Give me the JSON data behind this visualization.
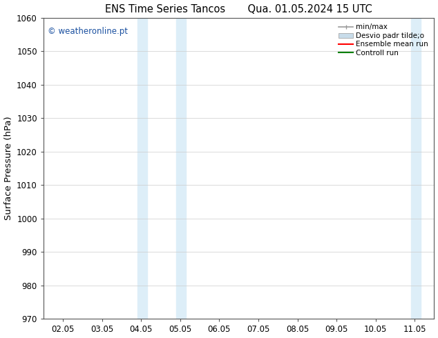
{
  "title": "ENS Time Series Tancos       Qua. 01.05.2024 15 UTC",
  "ylabel": "Surface Pressure (hPa)",
  "xlabel": "",
  "ylim": [
    970,
    1060
  ],
  "yticks": [
    970,
    980,
    990,
    1000,
    1010,
    1020,
    1030,
    1040,
    1050,
    1060
  ],
  "xtick_labels": [
    "02.05",
    "03.05",
    "04.05",
    "05.05",
    "06.05",
    "07.05",
    "08.05",
    "09.05",
    "10.05",
    "11.05"
  ],
  "xtick_positions": [
    0,
    1,
    2,
    3,
    4,
    5,
    6,
    7,
    8,
    9
  ],
  "xlim": [
    -0.5,
    9.5
  ],
  "shaded_regions": [
    {
      "xmin": 1.9,
      "xmax": 2.15,
      "color": "#ddeef8"
    },
    {
      "xmin": 2.9,
      "xmax": 3.15,
      "color": "#ddeef8"
    },
    {
      "xmin": 8.9,
      "xmax": 9.15,
      "color": "#ddeef8"
    },
    {
      "xmin": 9.5,
      "xmax": 9.65,
      "color": "#ddeef8"
    }
  ],
  "watermark": "© weatheronline.pt",
  "watermark_color": "#1a50a0",
  "background_color": "#ffffff",
  "legend_labels": [
    "min/max",
    "Desvio padr tilde;o",
    "Ensemble mean run",
    "Controll run"
  ],
  "legend_colors_line": [
    "#999999",
    "#c8dcea",
    "red",
    "green"
  ],
  "grid_color": "#cccccc",
  "spine_color": "#555555",
  "tick_label_fontsize": 8.5,
  "axis_label_fontsize": 9.5,
  "title_fontsize": 10.5
}
